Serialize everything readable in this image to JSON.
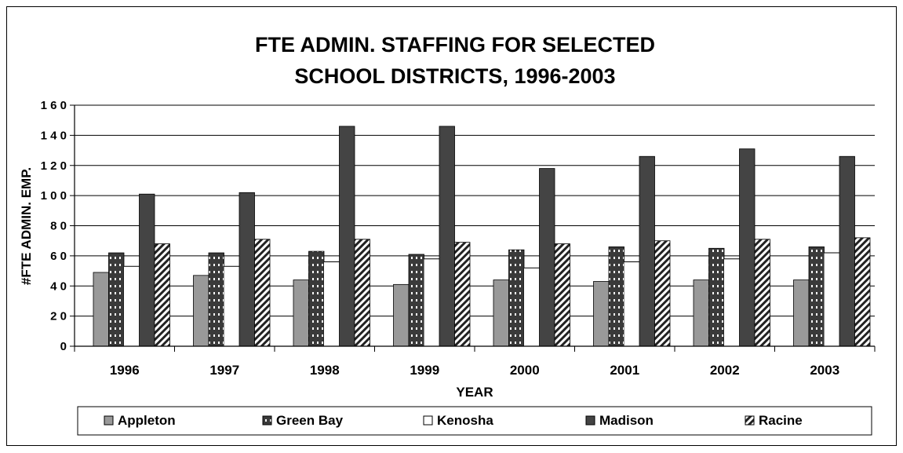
{
  "chart_data": {
    "type": "bar",
    "title": [
      "FTE ADMIN. STAFFING FOR SELECTED",
      "SCHOOL DISTRICTS, 1996-2003"
    ],
    "xlabel": "YEAR",
    "ylabel": "#FTE ADMIN. EMP.",
    "ylim": [
      0,
      160
    ],
    "yticks": [
      0,
      20,
      40,
      60,
      80,
      100,
      120,
      140,
      160
    ],
    "grid": true,
    "legend_position": "bottom",
    "categories": [
      "1996",
      "1997",
      "1998",
      "1999",
      "2000",
      "2001",
      "2002",
      "2003"
    ],
    "series": [
      {
        "name": "Appleton",
        "color": "#999999",
        "pattern": "solid",
        "values": [
          49,
          47,
          44,
          41,
          44,
          43,
          44,
          44
        ]
      },
      {
        "name": "Green Bay",
        "color": "#3a3a3a",
        "pattern": "dots",
        "values": [
          62,
          62,
          63,
          61,
          64,
          66,
          65,
          66
        ]
      },
      {
        "name": "Kenosha",
        "color": "#ffffff",
        "pattern": "solid",
        "values": [
          53,
          53,
          56,
          58,
          52,
          56,
          58,
          62
        ]
      },
      {
        "name": "Madison",
        "color": "#444444",
        "pattern": "solid",
        "values": [
          101,
          102,
          146,
          146,
          118,
          126,
          131,
          126
        ]
      },
      {
        "name": "Racine",
        "color": "#ffffff",
        "pattern": "hatch",
        "values": [
          68,
          71,
          71,
          69,
          68,
          70,
          71,
          72
        ]
      }
    ]
  }
}
